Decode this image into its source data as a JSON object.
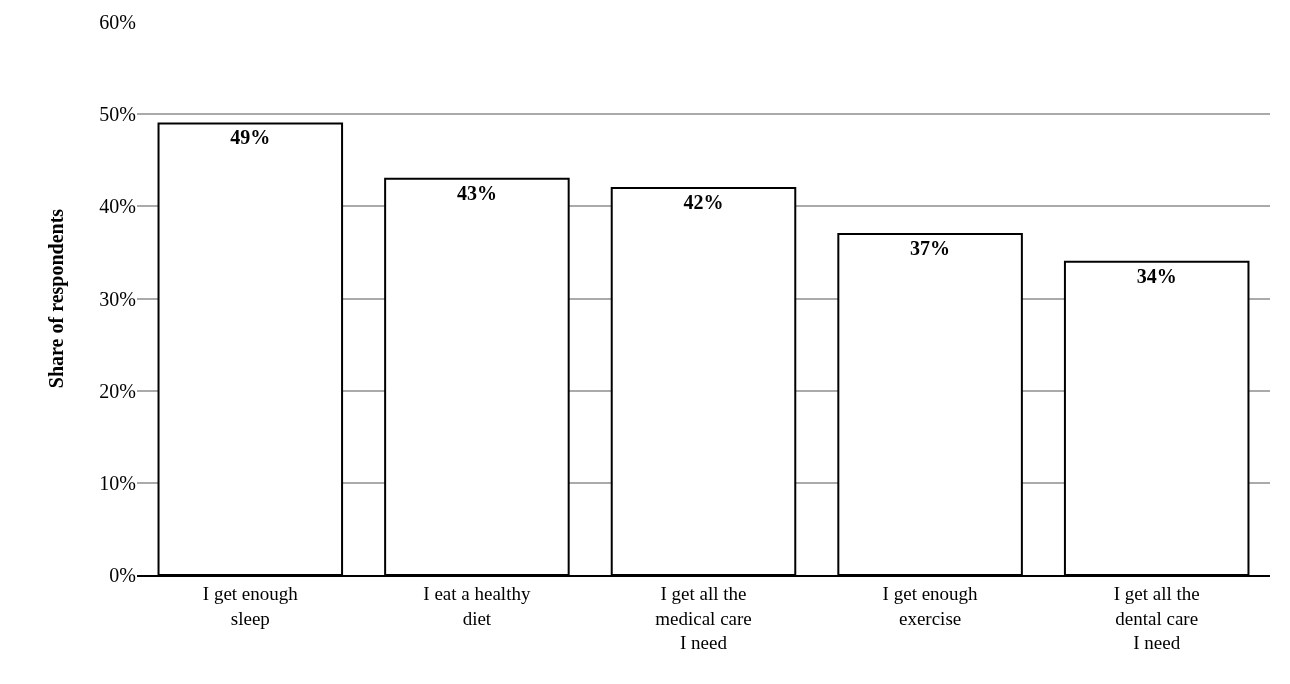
{
  "chart_data": {
    "type": "bar",
    "ylabel": "Share of respondents",
    "categories": [
      "I get enough\nsleep",
      "I eat a healthy\ndiet",
      "I get all the\nmedical care\nI need",
      "I get enough\nexercise",
      "I get all the\ndental care\nI need"
    ],
    "values": [
      49,
      43,
      42,
      37,
      34
    ],
    "value_labels": [
      "49%",
      "43%",
      "42%",
      "37%",
      "34%"
    ],
    "color": "#ffffff",
    "ylim": [
      0,
      60
    ],
    "yticks": [
      {
        "value": 0,
        "label": "0%"
      },
      {
        "value": 10,
        "label": "10%"
      },
      {
        "value": 20,
        "label": "20%"
      },
      {
        "value": 30,
        "label": "30%"
      },
      {
        "value": 40,
        "label": "40%"
      },
      {
        "value": 50,
        "label": "50%"
      },
      {
        "value": 60,
        "label": "60%"
      }
    ],
    "grid": "y"
  }
}
